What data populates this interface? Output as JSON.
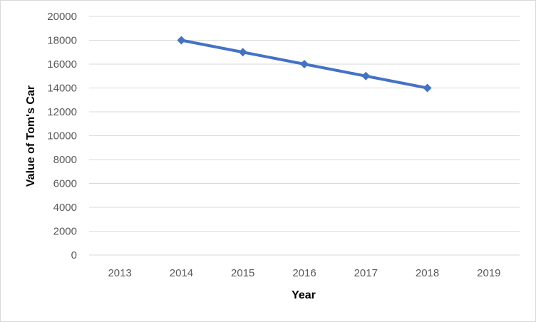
{
  "chart_data": {
    "type": "line",
    "title": "",
    "xlabel": "Year",
    "ylabel": "Value of Tom's Car",
    "categories": [
      "2013",
      "2014",
      "2015",
      "2016",
      "2017",
      "2018",
      "2019"
    ],
    "series": [
      {
        "values": [
          null,
          18000,
          17000,
          16000,
          15000,
          14000,
          null
        ],
        "color": "#4472c4",
        "marker": "diamond"
      }
    ],
    "ylim": [
      0,
      20000
    ],
    "yticks": [
      "0",
      "2000",
      "4000",
      "6000",
      "8000",
      "10000",
      "12000",
      "14000",
      "16000",
      "18000",
      "20000"
    ],
    "grid": true,
    "legend": "none",
    "colors": {
      "line": "#4472c4",
      "grid": "#d9d9d9",
      "tick_text": "#595959"
    }
  }
}
